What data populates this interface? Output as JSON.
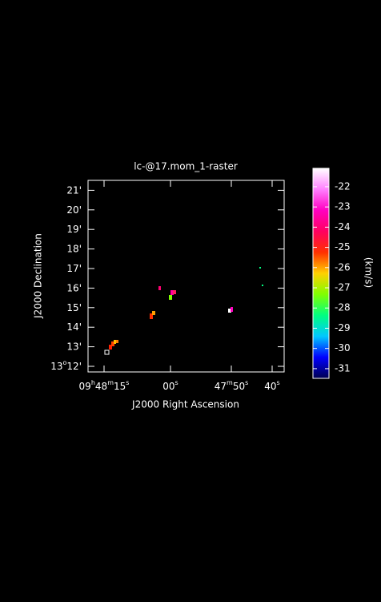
{
  "plot": {
    "title": "lc-@17.mom_1-raster",
    "ylabel": "J2000 Declination",
    "xlabel": "J2000 Right Ascension",
    "yticks": [
      [
        "13",
        "o",
        "12'"
      ],
      [
        "13'"
      ],
      [
        "14'"
      ],
      [
        "15'"
      ],
      [
        "16'"
      ],
      [
        "17'"
      ],
      [
        "18'"
      ],
      [
        "19'"
      ],
      [
        "20'"
      ],
      [
        "21'"
      ]
    ],
    "xticks": [
      [
        "09",
        "h",
        "48",
        "m",
        "15",
        "s"
      ],
      [
        "00",
        "s"
      ],
      [
        "47",
        "m",
        "50",
        "s"
      ],
      [
        "40",
        "s"
      ]
    ]
  },
  "colorbar": {
    "range": [
      -31.48,
      -21.09
    ],
    "ticks": [
      -22,
      -23,
      -24,
      -25,
      -26,
      -27,
      -28,
      -29,
      -30,
      -31
    ],
    "label": "(km/s)"
  }
}
